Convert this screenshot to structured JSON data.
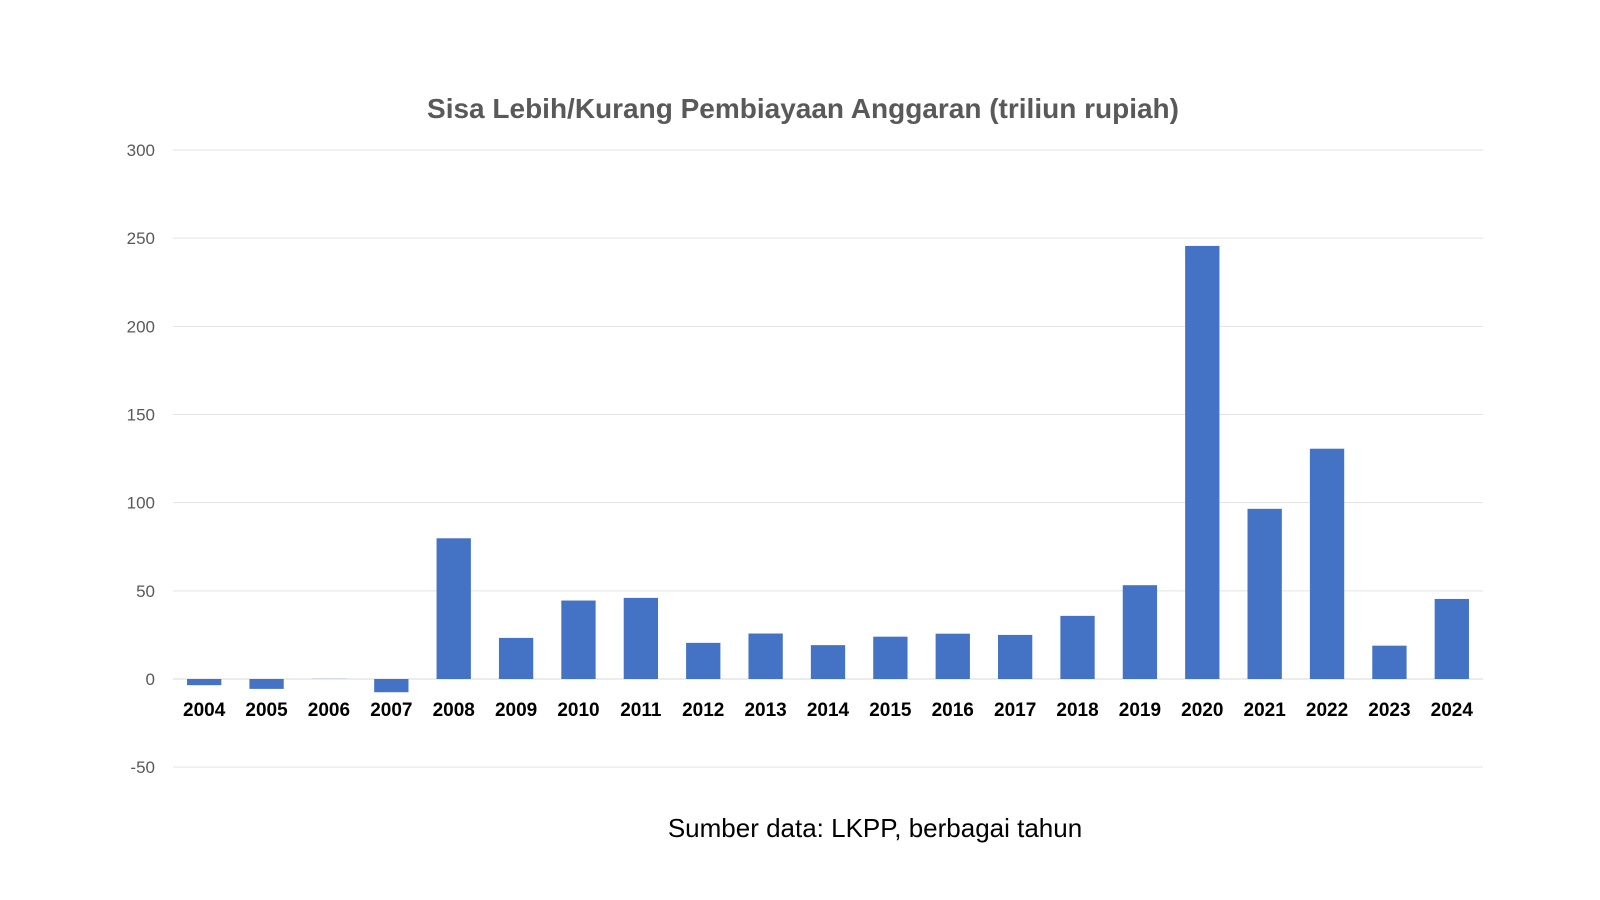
{
  "chart_data": {
    "type": "bar",
    "title": "Sisa Lebih/Kurang Pembiayaan Anggaran (triliun rupiah)",
    "xlabel": "",
    "ylabel": "",
    "categories": [
      "2004",
      "2005",
      "2006",
      "2007",
      "2008",
      "2009",
      "2010",
      "2011",
      "2012",
      "2013",
      "2014",
      "2015",
      "2016",
      "2017",
      "2018",
      "2019",
      "2020",
      "2021",
      "2022",
      "2023",
      "2024"
    ],
    "values": [
      -3.5,
      -5.6,
      0.1,
      -7.5,
      79.8,
      23.3,
      44.5,
      46.0,
      20.5,
      25.8,
      19.2,
      24.0,
      25.7,
      25.0,
      35.8,
      53.2,
      245.6,
      96.5,
      130.6,
      18.9,
      45.4
    ],
    "ylim": [
      -50,
      300
    ],
    "yticks": [
      "300",
      "250",
      "200",
      "150",
      "100",
      "50",
      "0",
      "-50"
    ],
    "ytick_values": [
      300,
      250,
      200,
      150,
      100,
      50,
      0,
      -50
    ],
    "grid": true,
    "legend": "none",
    "bar_color": "#4472C4",
    "source": "Sumber data: LKPP, berbagai tahun"
  }
}
